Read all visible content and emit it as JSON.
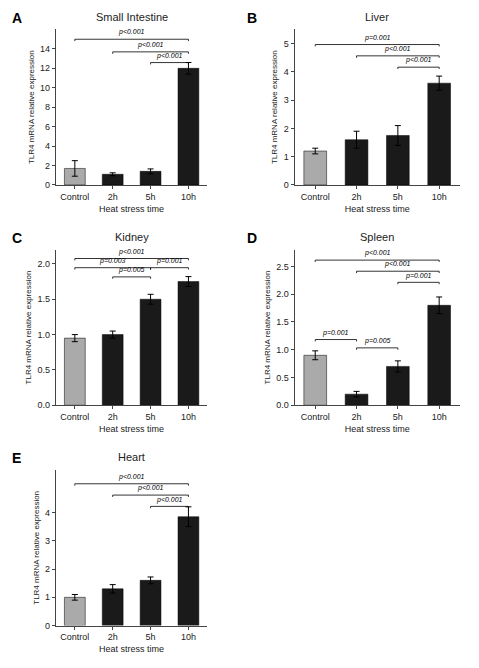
{
  "chart_data": [
    {
      "type": "bar",
      "label": "A",
      "title": "Small Intestine",
      "categories": [
        "Control",
        "2h",
        "5h",
        "10h"
      ],
      "values": [
        1.7,
        1.1,
        1.4,
        12.0
      ],
      "errors": [
        0.8,
        0.15,
        0.25,
        0.6
      ],
      "colors": [
        "#aaaaaa",
        "#1a1a1a",
        "#1a1a1a",
        "#1a1a1a"
      ],
      "ylim": [
        0,
        16
      ],
      "yticks": [
        0,
        2,
        4,
        6,
        8,
        10,
        12,
        14
      ],
      "xlabel": "Heat stress time",
      "ylabel": "TLR4 mRNA relative expression",
      "grid": false,
      "annotations": [
        {
          "from": "Control",
          "to": "10h",
          "y": 14.8,
          "label": "p<0.001"
        },
        {
          "from": "2h",
          "to": "10h",
          "y": 13.5,
          "label": "p<0.001"
        },
        {
          "from": "5h",
          "to": "10h",
          "y": 12.4,
          "label": "p<0.001"
        }
      ]
    },
    {
      "type": "bar",
      "label": "B",
      "title": "Liver",
      "categories": [
        "Control",
        "2h",
        "5h",
        "10h"
      ],
      "values": [
        1.2,
        1.6,
        1.75,
        3.6
      ],
      "errors": [
        0.1,
        0.3,
        0.35,
        0.25
      ],
      "colors": [
        "#aaaaaa",
        "#1a1a1a",
        "#1a1a1a",
        "#1a1a1a"
      ],
      "ylim": [
        0,
        5.5
      ],
      "yticks": [
        0,
        1,
        2,
        3,
        4,
        5
      ],
      "xlabel": "Heat stress time",
      "ylabel": "TLR4 mRNA relative expression",
      "grid": false,
      "annotations": [
        {
          "from": "Control",
          "to": "10h",
          "y": 4.9,
          "label": "p=0.001"
        },
        {
          "from": "2h",
          "to": "10h",
          "y": 4.5,
          "label": "p<0.001"
        },
        {
          "from": "5h",
          "to": "10h",
          "y": 4.1,
          "label": "p<0.001"
        }
      ]
    },
    {
      "type": "bar",
      "label": "C",
      "title": "Kidney",
      "categories": [
        "Control",
        "2h",
        "5h",
        "10h"
      ],
      "values": [
        0.95,
        1.0,
        1.5,
        1.75
      ],
      "errors": [
        0.05,
        0.05,
        0.07,
        0.07
      ],
      "colors": [
        "#aaaaaa",
        "#1a1a1a",
        "#1a1a1a",
        "#1a1a1a"
      ],
      "ylim": [
        0,
        2.2
      ],
      "yticks": [
        {
          "value": 0,
          "label": "0.0"
        },
        0.5,
        {
          "value": 1,
          "label": "1.0"
        },
        1.5,
        {
          "value": 2,
          "label": "2.0"
        }
      ],
      "xlabel": "Heat stress time",
      "ylabel": "TLR4 mRNA relative expression",
      "grid": false,
      "annotations": [
        {
          "from": "Control",
          "to": "10h",
          "y": 2.05,
          "label": "p<0.001"
        },
        {
          "from": "Control",
          "to": "5h",
          "y": 1.92,
          "label": "p=0.003"
        },
        {
          "from": "2h",
          "to": "5h",
          "y": 1.79,
          "label": "p=0.005"
        },
        {
          "from": "5h",
          "to": "10h",
          "y": 1.92,
          "label": "p=0.001"
        }
      ]
    },
    {
      "type": "bar",
      "label": "D",
      "title": "Spleen",
      "categories": [
        "Control",
        "2h",
        "5h",
        "10h"
      ],
      "values": [
        0.9,
        0.2,
        0.7,
        1.8
      ],
      "errors": [
        0.08,
        0.05,
        0.1,
        0.15
      ],
      "colors": [
        "#aaaaaa",
        "#1a1a1a",
        "#1a1a1a",
        "#1a1a1a"
      ],
      "ylim": [
        0,
        2.8
      ],
      "yticks": [
        {
          "value": 0,
          "label": "0.0"
        },
        0.5,
        {
          "value": 1,
          "label": "1.0"
        },
        1.5,
        {
          "value": 2,
          "label": "2.0"
        },
        2.5
      ],
      "xlabel": "Heat stress time",
      "ylabel": "TLR4 mRNA relative expression",
      "grid": false,
      "annotations": [
        {
          "from": "Control",
          "to": "10h",
          "y": 2.58,
          "label": "p<0.001"
        },
        {
          "from": "2h",
          "to": "10h",
          "y": 2.38,
          "label": "p<0.001"
        },
        {
          "from": "5h",
          "to": "10h",
          "y": 2.18,
          "label": "p=0.001"
        },
        {
          "from": "Control",
          "to": "2h",
          "y": 1.15,
          "label": "p=0.001"
        },
        {
          "from": "2h",
          "to": "5h",
          "y": 1.0,
          "label": "p=0.005"
        }
      ]
    },
    {
      "type": "bar",
      "label": "E",
      "title": "Heart",
      "categories": [
        "Control",
        "2h",
        "5h",
        "10h"
      ],
      "values": [
        1.0,
        1.3,
        1.6,
        3.85
      ],
      "errors": [
        0.1,
        0.15,
        0.12,
        0.35
      ],
      "colors": [
        "#aaaaaa",
        "#1a1a1a",
        "#1a1a1a",
        "#1a1a1a"
      ],
      "ylim": [
        0,
        5.5
      ],
      "yticks": [
        0,
        1,
        2,
        3,
        4
      ],
      "xlabel": "Heat stress time",
      "ylabel": "TLR4 mRNA relative expression",
      "grid": false,
      "annotations": [
        {
          "from": "Control",
          "to": "10h",
          "y": 4.95,
          "label": "p<0.001"
        },
        {
          "from": "2h",
          "to": "10h",
          "y": 4.55,
          "label": "p<0.001"
        },
        {
          "from": "5h",
          "to": "10h",
          "y": 4.15,
          "label": "p<0.001"
        }
      ]
    }
  ]
}
